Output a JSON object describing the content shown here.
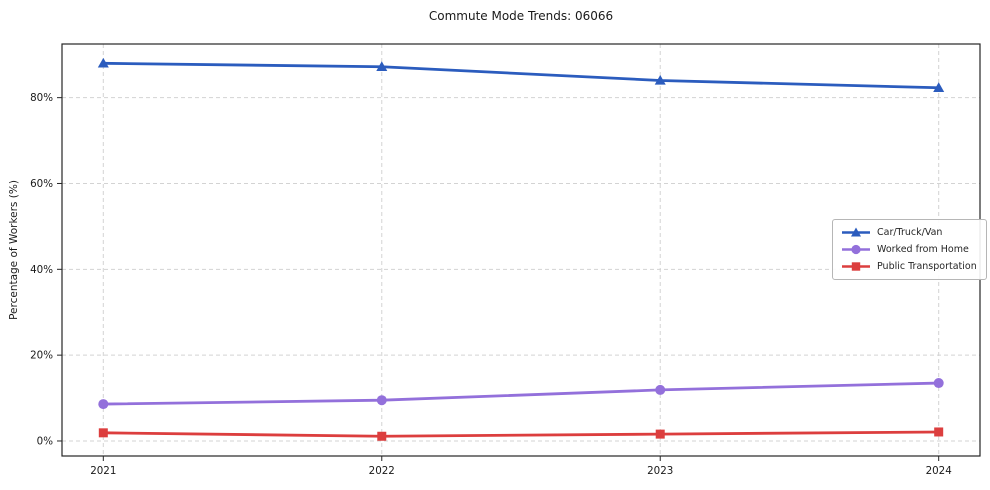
{
  "chart_data": {
    "type": "line",
    "title": "Commute Mode Trends: 06066",
    "xlabel": "",
    "ylabel": "Percentage of Workers (%)",
    "categories": [
      "2021",
      "2022",
      "2023",
      "2024"
    ],
    "series": [
      {
        "name": "Car/Truck/Van",
        "marker": "triangle",
        "color": "#2b5cbe",
        "values": [
          88.0,
          87.2,
          84.0,
          82.3
        ]
      },
      {
        "name": "Worked from Home",
        "marker": "circle",
        "color": "#9370db",
        "values": [
          8.6,
          9.5,
          11.9,
          13.5
        ]
      },
      {
        "name": "Public Transportation",
        "marker": "square",
        "color": "#dc3e3e",
        "values": [
          1.9,
          1.1,
          1.6,
          2.1
        ]
      }
    ],
    "yticks": [
      {
        "value": 0,
        "label": "0%"
      },
      {
        "value": 20,
        "label": "20%"
      },
      {
        "value": 40,
        "label": "40%"
      },
      {
        "value": 60,
        "label": "60%"
      },
      {
        "value": 80,
        "label": "80%"
      }
    ],
    "ylim": [
      -3.5,
      92.5
    ],
    "grid": true,
    "grid_color": "#d3d3d3",
    "spine_color": "#262626",
    "legend_position": "center right"
  }
}
